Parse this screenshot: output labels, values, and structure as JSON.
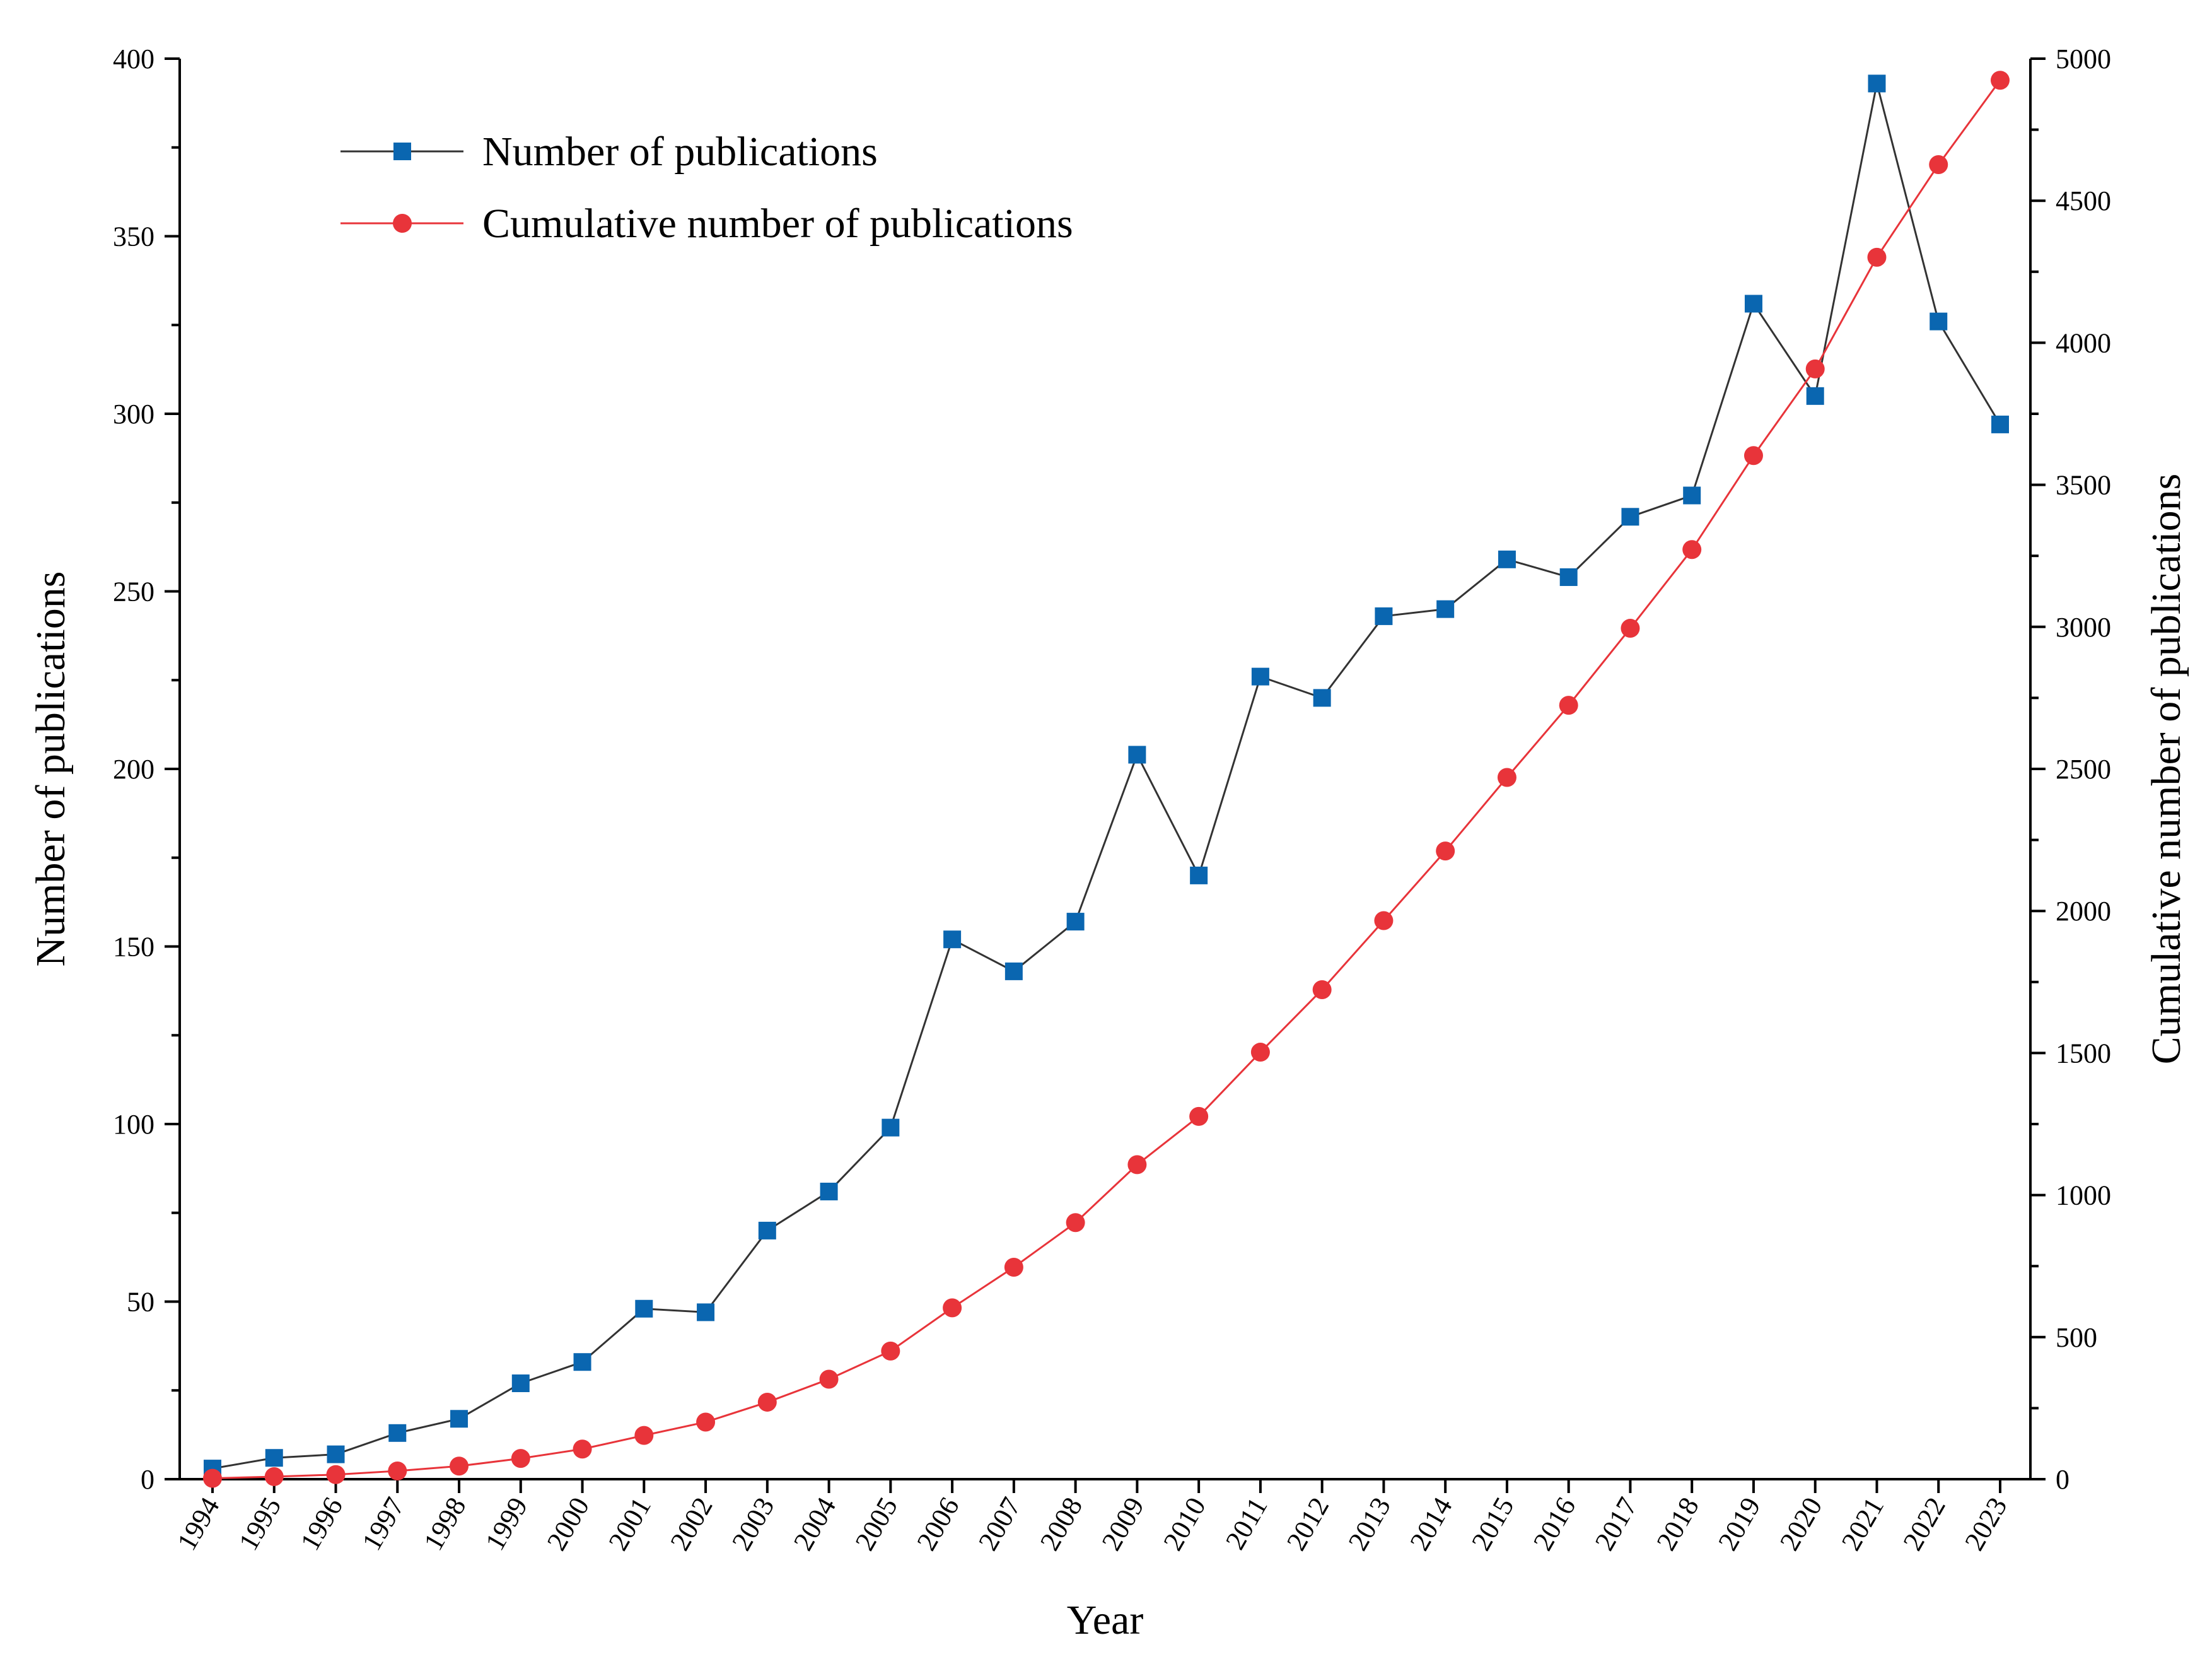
{
  "chart_data": {
    "type": "line",
    "title": "",
    "xlabel": "Year",
    "ylabel": "Number of publications",
    "y2label": "Cumulative number of publications",
    "x": [
      "1994",
      "1995",
      "1996",
      "1997",
      "1998",
      "1999",
      "2000",
      "2001",
      "2002",
      "2003",
      "2004",
      "2005",
      "2006",
      "2007",
      "2008",
      "2009",
      "2010",
      "2011",
      "2012",
      "2013",
      "2014",
      "2015",
      "2016",
      "2017",
      "2018",
      "2019",
      "2020",
      "2021",
      "2022",
      "2023"
    ],
    "ylim": [
      0,
      400
    ],
    "y2lim": [
      0,
      5000
    ],
    "y_ticks": [
      0,
      50,
      100,
      150,
      200,
      250,
      300,
      350,
      400
    ],
    "y2_ticks": [
      0,
      500,
      1000,
      1500,
      2000,
      2500,
      3000,
      3500,
      4000,
      4500,
      5000
    ],
    "legend_position": "top-left",
    "grid": false,
    "series": [
      {
        "name": "Number of publications",
        "axis": "left",
        "marker": "square",
        "line_color": "#333333",
        "marker_color": "#0a66b0",
        "values": [
          3,
          6,
          7,
          13,
          17,
          27,
          33,
          48,
          47,
          70,
          81,
          99,
          152,
          143,
          157,
          204,
          170,
          226,
          220,
          243,
          245,
          259,
          254,
          271,
          277,
          331,
          305,
          393,
          326,
          297
        ]
      },
      {
        "name": "Cumulative number of publications",
        "axis": "right",
        "marker": "circle",
        "line_color": "#e8343a",
        "marker_color": "#e8343a",
        "values": [
          3,
          9,
          16,
          29,
          46,
          73,
          106,
          154,
          201,
          271,
          352,
          451,
          603,
          746,
          903,
          1107,
          1277,
          1503,
          1723,
          1966,
          2211,
          2470,
          2724,
          2995,
          3272,
          3603,
          3908,
          4301,
          4627,
          4924
        ]
      }
    ]
  }
}
